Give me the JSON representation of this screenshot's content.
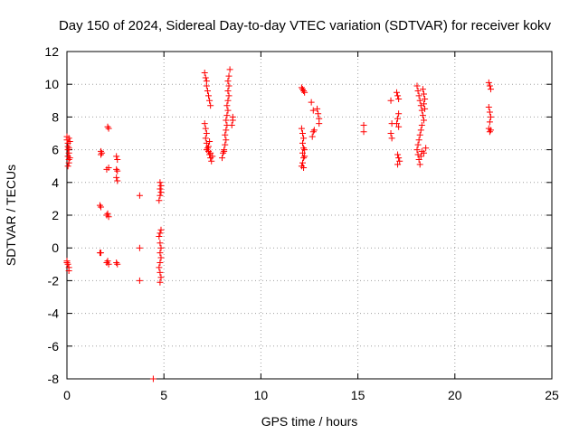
{
  "chart_data": {
    "type": "scatter",
    "title": "Day 150 of 2024, Sidereal Day-to-day VTEC variation (SDTVAR) for receiver kokv",
    "xlabel": "GPS time / hours",
    "ylabel": "SDTVAR / TECUs",
    "xlim": [
      0,
      25
    ],
    "ylim": [
      -8,
      12
    ],
    "xticks": [
      0,
      5,
      10,
      15,
      20,
      25
    ],
    "yticks": [
      -8,
      -6,
      -4,
      -2,
      0,
      2,
      4,
      6,
      8,
      10,
      12
    ],
    "grid": true,
    "marker": "+",
    "point_color": "#ff0000",
    "series": [
      {
        "name": "SDTVAR",
        "points": [
          [
            0.0,
            6.8
          ],
          [
            0.0,
            6.6
          ],
          [
            0.05,
            6.4
          ],
          [
            0.05,
            6.2
          ],
          [
            0.05,
            6.0
          ],
          [
            0.1,
            5.8
          ],
          [
            0.05,
            5.6
          ],
          [
            0.1,
            5.4
          ],
          [
            0.1,
            5.2
          ],
          [
            0.05,
            5.0
          ],
          [
            0.1,
            6.7
          ],
          [
            0.15,
            6.5
          ],
          [
            0.1,
            6.1
          ],
          [
            0.15,
            5.5
          ],
          [
            0.0,
            -0.8
          ],
          [
            0.05,
            -1.0
          ],
          [
            0.1,
            -1.2
          ],
          [
            0.1,
            -1.4
          ],
          [
            0.0,
            -0.9
          ],
          [
            1.75,
            5.9
          ],
          [
            1.75,
            5.7
          ],
          [
            1.8,
            5.8
          ],
          [
            1.7,
            2.6
          ],
          [
            1.75,
            2.5
          ],
          [
            1.75,
            -0.3
          ],
          [
            1.7,
            -0.3
          ],
          [
            2.1,
            7.4
          ],
          [
            2.15,
            7.3
          ],
          [
            2.15,
            4.9
          ],
          [
            2.05,
            4.8
          ],
          [
            2.1,
            2.1
          ],
          [
            2.15,
            1.9
          ],
          [
            2.05,
            2.0
          ],
          [
            2.1,
            -0.8
          ],
          [
            2.15,
            -1.0
          ],
          [
            2.05,
            -0.9
          ],
          [
            2.55,
            5.6
          ],
          [
            2.6,
            5.4
          ],
          [
            2.55,
            4.8
          ],
          [
            2.6,
            4.7
          ],
          [
            2.55,
            4.3
          ],
          [
            2.6,
            4.1
          ],
          [
            2.55,
            -0.9
          ],
          [
            2.6,
            -1.0
          ],
          [
            3.75,
            3.2
          ],
          [
            3.75,
            0.0
          ],
          [
            3.75,
            -2.0
          ],
          [
            4.45,
            -8.0
          ],
          [
            4.8,
            4.0
          ],
          [
            4.85,
            3.8
          ],
          [
            4.8,
            3.6
          ],
          [
            4.85,
            3.4
          ],
          [
            4.8,
            3.2
          ],
          [
            4.75,
            2.9
          ],
          [
            4.85,
            1.1
          ],
          [
            4.8,
            0.9
          ],
          [
            4.75,
            0.7
          ],
          [
            4.8,
            0.3
          ],
          [
            4.85,
            0.0
          ],
          [
            4.8,
            -0.3
          ],
          [
            4.85,
            -0.6
          ],
          [
            4.8,
            -0.9
          ],
          [
            4.75,
            -1.2
          ],
          [
            4.8,
            -1.5
          ],
          [
            4.85,
            -1.8
          ],
          [
            4.8,
            -2.1
          ],
          [
            7.1,
            10.7
          ],
          [
            7.15,
            10.4
          ],
          [
            7.2,
            10.2
          ],
          [
            7.2,
            9.9
          ],
          [
            7.25,
            9.6
          ],
          [
            7.3,
            9.3
          ],
          [
            7.35,
            9.0
          ],
          [
            7.4,
            8.7
          ],
          [
            7.1,
            7.6
          ],
          [
            7.15,
            7.3
          ],
          [
            7.2,
            7.0
          ],
          [
            7.15,
            6.7
          ],
          [
            7.2,
            6.4
          ],
          [
            7.25,
            6.1
          ],
          [
            7.3,
            5.9
          ],
          [
            7.35,
            5.7
          ],
          [
            7.4,
            5.5
          ],
          [
            7.45,
            5.3
          ],
          [
            7.2,
            6.0
          ],
          [
            7.3,
            6.2
          ],
          [
            7.4,
            5.8
          ],
          [
            7.5,
            5.6
          ],
          [
            7.35,
            6.5
          ],
          [
            8.05,
            5.8
          ],
          [
            8.1,
            6.0
          ],
          [
            8.15,
            6.3
          ],
          [
            8.2,
            6.6
          ],
          [
            8.15,
            6.9
          ],
          [
            8.2,
            7.2
          ],
          [
            8.25,
            7.5
          ],
          [
            8.2,
            7.8
          ],
          [
            8.25,
            8.1
          ],
          [
            8.3,
            8.4
          ],
          [
            8.25,
            8.7
          ],
          [
            8.3,
            9.0
          ],
          [
            8.35,
            9.3
          ],
          [
            8.3,
            9.6
          ],
          [
            8.35,
            9.9
          ],
          [
            8.3,
            10.2
          ],
          [
            8.35,
            10.5
          ],
          [
            8.4,
            10.9
          ],
          [
            8.0,
            5.5
          ],
          [
            8.1,
            5.9
          ],
          [
            8.55,
            8.0
          ],
          [
            8.55,
            7.8
          ],
          [
            8.5,
            7.5
          ],
          [
            12.1,
            9.8
          ],
          [
            12.15,
            9.7
          ],
          [
            12.2,
            9.6
          ],
          [
            12.25,
            9.5
          ],
          [
            12.1,
            7.3
          ],
          [
            12.15,
            7.0
          ],
          [
            12.2,
            6.7
          ],
          [
            12.15,
            6.4
          ],
          [
            12.2,
            6.1
          ],
          [
            12.15,
            5.8
          ],
          [
            12.2,
            5.5
          ],
          [
            12.15,
            5.2
          ],
          [
            12.1,
            5.0
          ],
          [
            12.2,
            4.9
          ],
          [
            12.25,
            5.6
          ],
          [
            12.25,
            6.0
          ],
          [
            12.6,
            8.9
          ],
          [
            12.7,
            8.4
          ],
          [
            12.7,
            7.1
          ],
          [
            12.65,
            6.8
          ],
          [
            12.75,
            7.2
          ],
          [
            12.95,
            8.2
          ],
          [
            13.0,
            7.9
          ],
          [
            13.0,
            7.6
          ],
          [
            12.9,
            8.5
          ],
          [
            15.3,
            7.5
          ],
          [
            15.3,
            7.1
          ],
          [
            16.7,
            9.0
          ],
          [
            16.75,
            7.6
          ],
          [
            16.7,
            7.0
          ],
          [
            16.75,
            6.7
          ],
          [
            17.0,
            9.5
          ],
          [
            17.05,
            9.3
          ],
          [
            17.1,
            9.1
          ],
          [
            17.1,
            8.2
          ],
          [
            17.05,
            7.9
          ],
          [
            17.0,
            7.6
          ],
          [
            17.1,
            7.4
          ],
          [
            17.05,
            5.7
          ],
          [
            17.1,
            5.5
          ],
          [
            17.15,
            5.3
          ],
          [
            17.05,
            5.1
          ],
          [
            18.05,
            9.9
          ],
          [
            18.1,
            9.6
          ],
          [
            18.15,
            9.3
          ],
          [
            18.2,
            9.0
          ],
          [
            18.25,
            8.7
          ],
          [
            18.3,
            8.4
          ],
          [
            18.35,
            8.1
          ],
          [
            18.4,
            7.8
          ],
          [
            18.3,
            7.5
          ],
          [
            18.25,
            7.2
          ],
          [
            18.2,
            6.9
          ],
          [
            18.15,
            6.6
          ],
          [
            18.1,
            6.3
          ],
          [
            18.05,
            6.0
          ],
          [
            18.1,
            5.7
          ],
          [
            18.15,
            5.4
          ],
          [
            18.2,
            5.1
          ],
          [
            18.35,
            9.7
          ],
          [
            18.4,
            9.4
          ],
          [
            18.45,
            9.1
          ],
          [
            18.4,
            8.8
          ],
          [
            18.45,
            8.5
          ],
          [
            18.5,
            6.1
          ],
          [
            18.4,
            5.8
          ],
          [
            18.3,
            5.9
          ],
          [
            18.25,
            5.6
          ],
          [
            21.75,
            10.1
          ],
          [
            21.8,
            9.9
          ],
          [
            21.85,
            9.7
          ],
          [
            21.75,
            8.6
          ],
          [
            21.8,
            8.3
          ],
          [
            21.85,
            8.0
          ],
          [
            21.8,
            7.7
          ],
          [
            21.75,
            7.3
          ],
          [
            21.8,
            7.1
          ],
          [
            21.85,
            7.2
          ]
        ]
      }
    ]
  }
}
